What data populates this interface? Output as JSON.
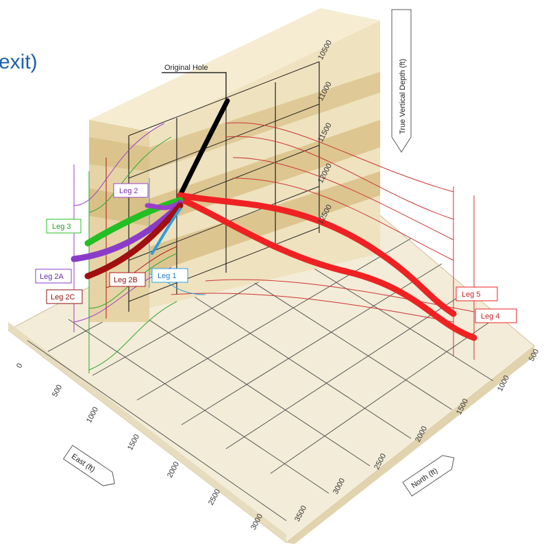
{
  "title_fragment": "exit)",
  "annotations": {
    "original_hole": "Original Hole",
    "vertical_axis": "True Vertical Depth (ft)",
    "east_axis": "East (ft)",
    "north_axis": "North (ft)"
  },
  "depth_ticks": [
    "10500",
    "11000",
    "11500",
    "12000",
    "12500"
  ],
  "east_ticks": [
    "0",
    "500",
    "1000",
    "1500",
    "2000",
    "2500",
    "3000"
  ],
  "north_ticks": [
    "500",
    "1000",
    "1500",
    "2000",
    "2500",
    "3000",
    "3500"
  ],
  "legs": [
    {
      "label": "Leg 1",
      "color": "#2a9fe0"
    },
    {
      "label": "Leg 2",
      "color": "#9c3fc8"
    },
    {
      "label": "Leg 2A",
      "color": "#8a3cc9"
    },
    {
      "label": "Leg 2B",
      "color": "#b01818"
    },
    {
      "label": "Leg 2C",
      "color": "#8c1010"
    },
    {
      "label": "Leg 3",
      "color": "#22c022"
    },
    {
      "label": "Leg 4",
      "color": "#ee2222"
    },
    {
      "label": "Leg 5",
      "color": "#ee2222"
    }
  ],
  "colors": {
    "original_hole": "#000000",
    "floor": "#f3ecd8",
    "wall": "#e9d8ae",
    "title": "#1f5fa8"
  }
}
